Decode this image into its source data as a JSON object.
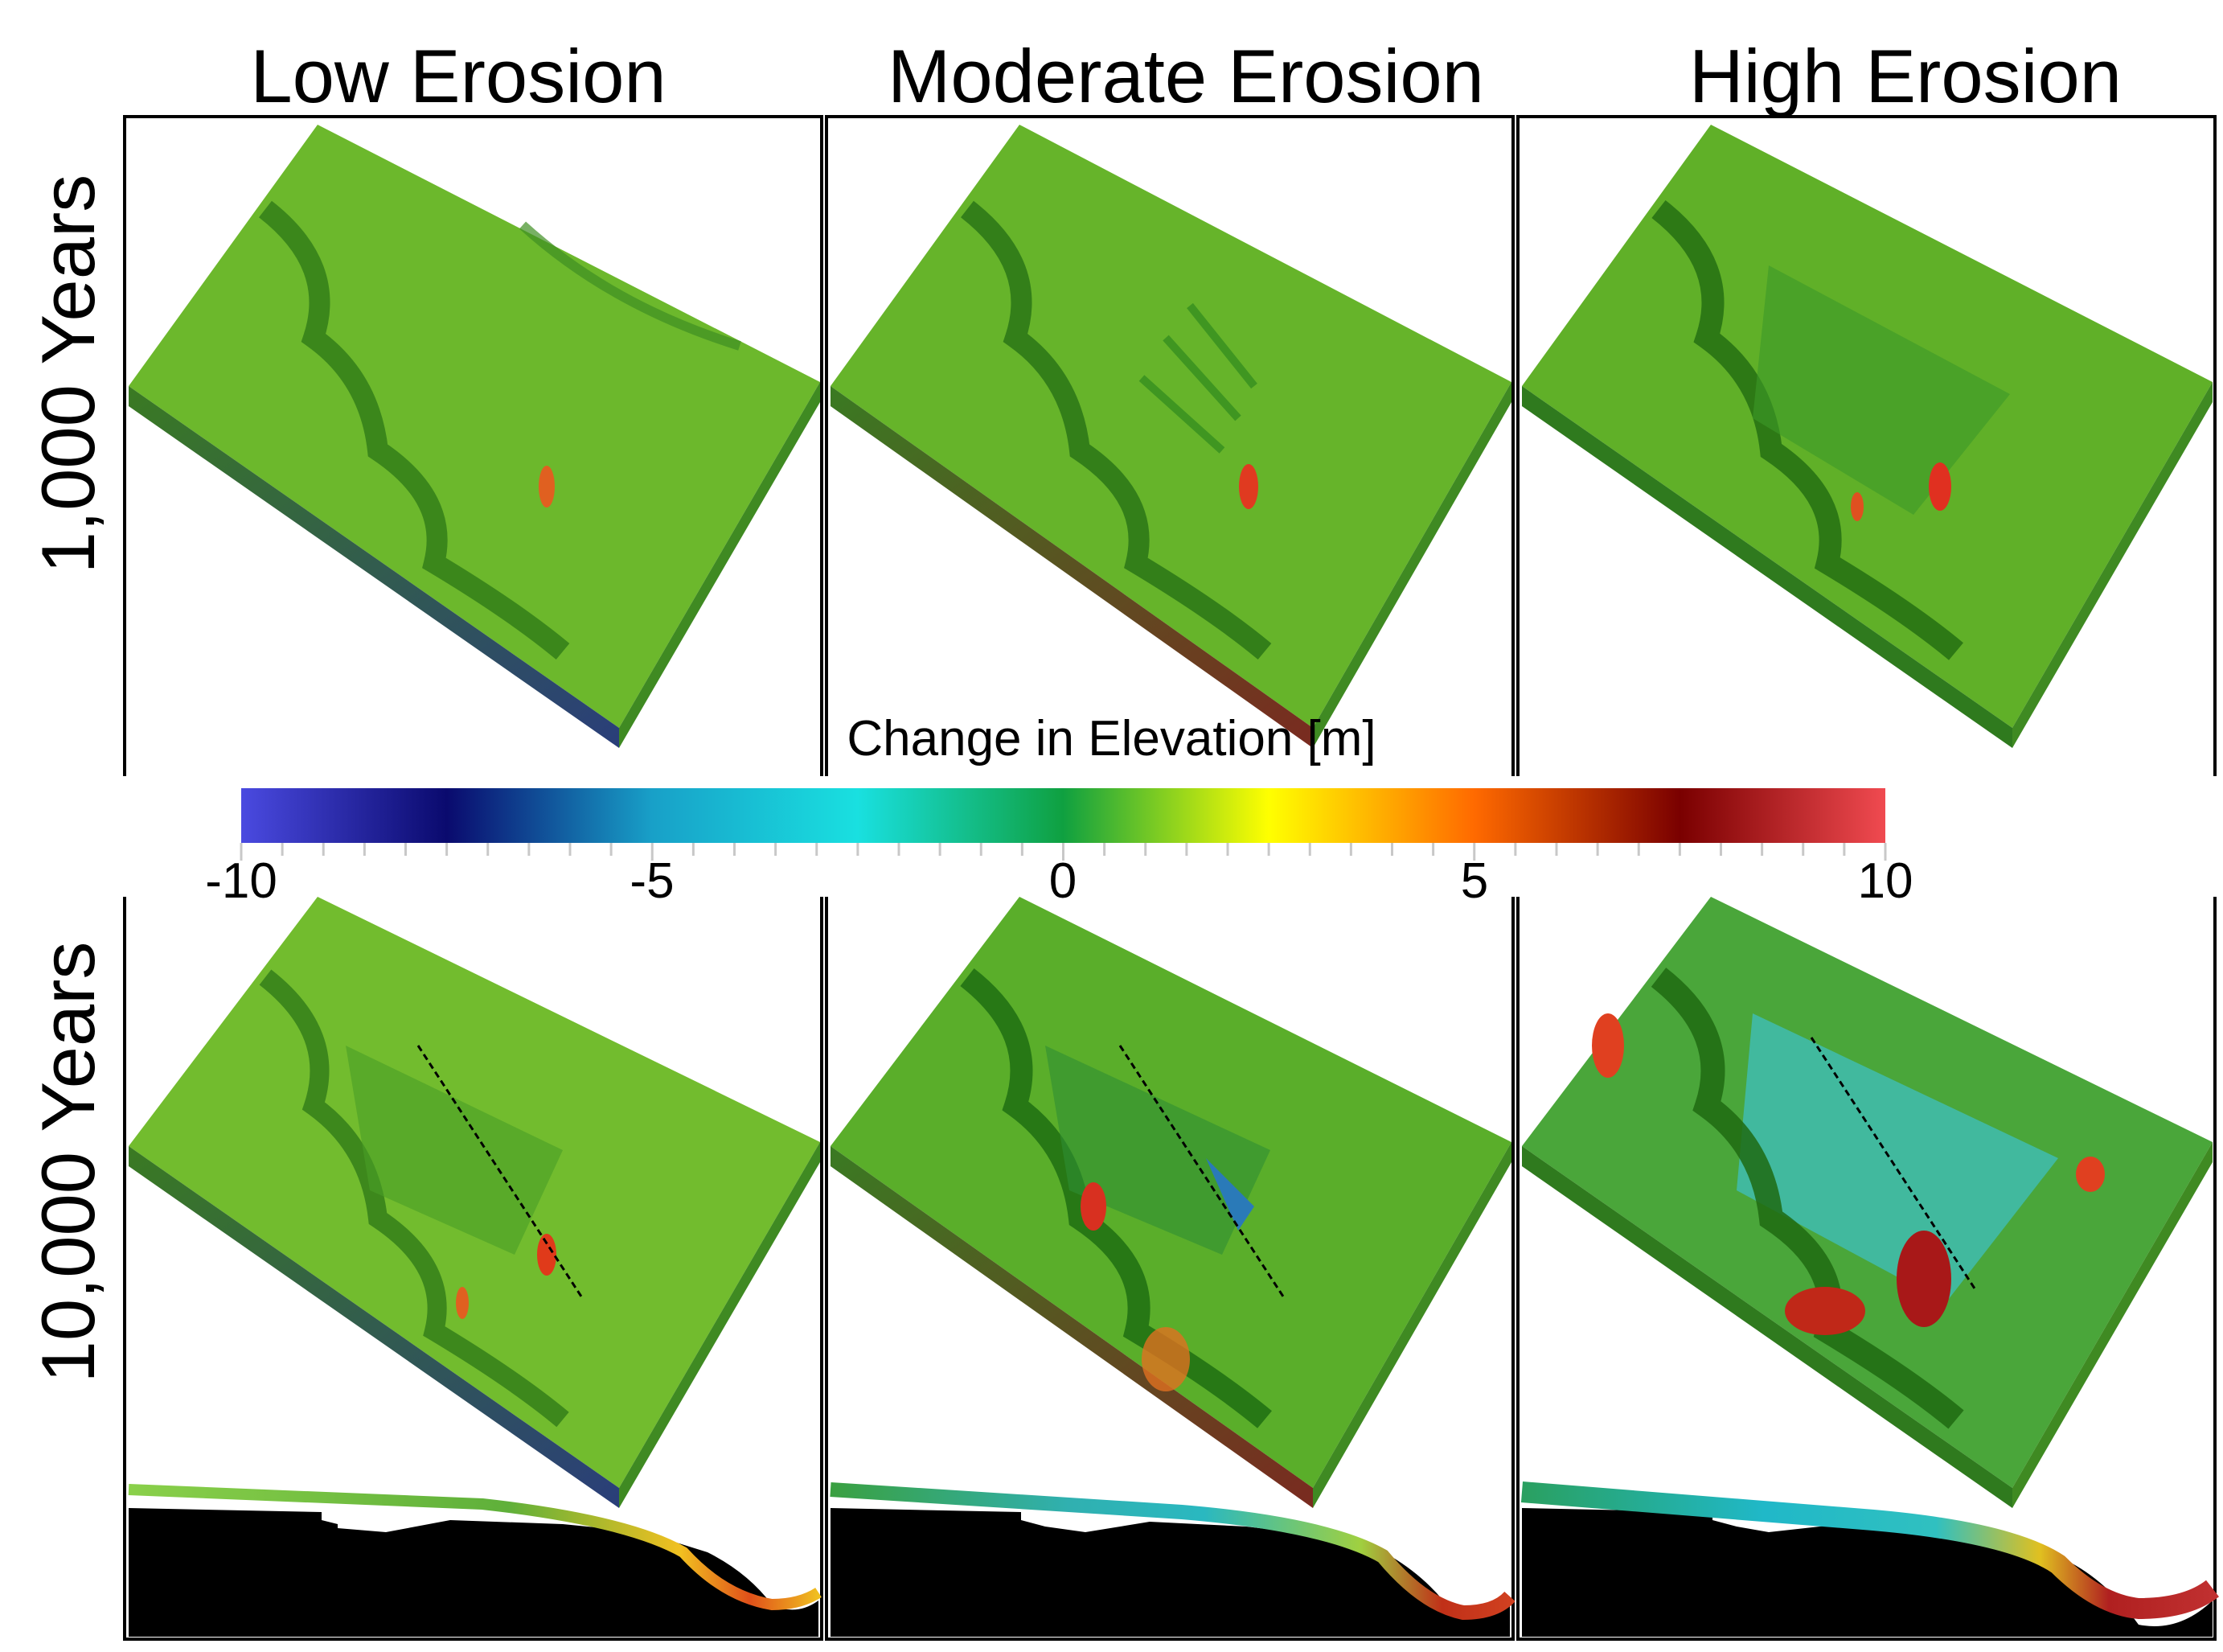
{
  "columns": [
    "Low Erosion",
    "Moderate Erosion",
    "High Erosion"
  ],
  "rows": [
    "1,000 Years",
    "10,000 Years"
  ],
  "colorbar": {
    "title": "Change in Elevation [m]",
    "min": -10,
    "max": 10,
    "ticks": [
      "-10",
      "-5",
      "0",
      "5",
      "10"
    ],
    "tick_values": [
      -10,
      -5,
      0,
      5,
      10
    ],
    "stops": [
      "#4a4ae0",
      "#0a0a6e",
      "#18a0c8",
      "#19e0e0",
      "#0fa040",
      "#ffff00",
      "#ff6a00",
      "#7a0000",
      "#f04a50"
    ]
  },
  "colors": {
    "terrain_base": "#69b42a",
    "terrain_dark": "#2f8a1e",
    "terrain_light": "#a8d23c",
    "erosion_cyan": "#3cc0b8",
    "deposition_red": "#d83a20",
    "frame": "#000000"
  }
}
